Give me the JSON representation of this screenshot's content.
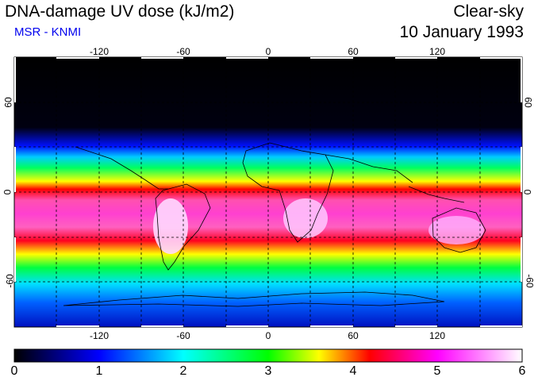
{
  "header": {
    "title": "DNA-damage UV dose (kJ/m2)",
    "subtitle": "MSR - KNMI",
    "sky_condition": "Clear-sky",
    "date": "10 January 1993"
  },
  "map": {
    "longitude_ticks_top": [
      "-120",
      "-60",
      "0",
      "60",
      "120"
    ],
    "longitude_ticks_bottom": [
      "-120",
      "-60",
      "0",
      "60",
      "120"
    ],
    "latitude_ticks_left": [
      "60",
      "0",
      "-60"
    ],
    "latitude_ticks_right": [
      "60",
      "0",
      "-60"
    ]
  },
  "colorbar": {
    "labels": [
      "0",
      "1",
      "2",
      "3",
      "4",
      "5",
      "6"
    ],
    "colors": [
      "#000000",
      "#0000ff",
      "#00ffff",
      "#00ff00",
      "#ffff00",
      "#ff0000",
      "#ff00ff",
      "#ffffff"
    ]
  }
}
